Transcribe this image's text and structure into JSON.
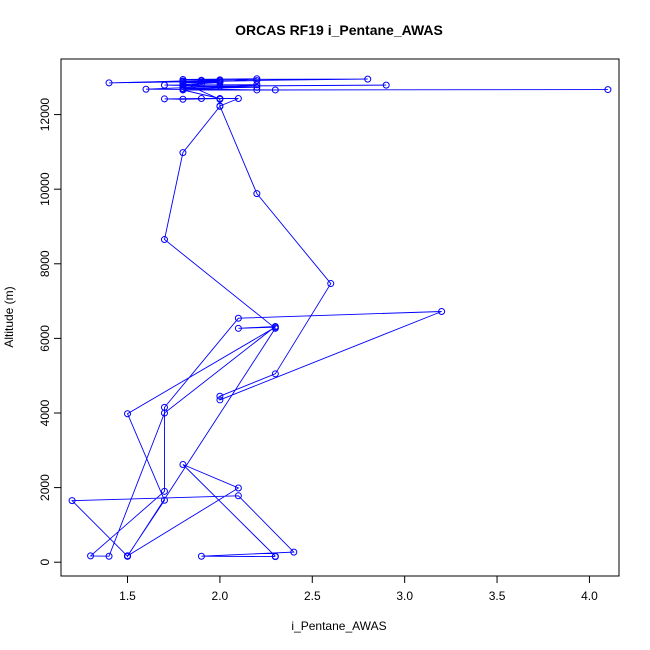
{
  "chart_data": {
    "type": "line",
    "title": "ORCAS RF19 i_Pentane_AWAS",
    "xlabel": "i_Pentane_AWAS",
    "ylabel": "Altitude (m)",
    "xlim": [
      1.14,
      4.16
    ],
    "ylim": [
      -370,
      13490
    ],
    "xticks": [
      1.5,
      2.0,
      2.5,
      3.0,
      3.5,
      4.0
    ],
    "xtick_labels": [
      "1.5",
      "2.0",
      "2.5",
      "3.0",
      "3.5",
      "4.0"
    ],
    "yticks": [
      0,
      2000,
      4000,
      6000,
      8000,
      10000,
      12000
    ],
    "ytick_labels": [
      "0",
      "2000",
      "4000",
      "6000",
      "8000",
      "10000",
      "12000"
    ],
    "grid": false,
    "series": [
      {
        "color": "#0000ff",
        "marker": "open-circle",
        "points": [
          [
            2.3,
            150
          ],
          [
            1.9,
            160
          ],
          [
            2.4,
            270
          ],
          [
            2.1,
            1780
          ],
          [
            1.2,
            1650
          ],
          [
            1.5,
            160
          ],
          [
            1.5,
            170
          ],
          [
            1.7,
            1660
          ],
          [
            1.5,
            3980
          ],
          [
            2.3,
            6300
          ],
          [
            2.1,
            6270
          ],
          [
            2.3,
            6320
          ],
          [
            1.7,
            4000
          ],
          [
            1.4,
            160
          ],
          [
            1.3,
            170
          ],
          [
            1.7,
            1900
          ],
          [
            1.7,
            4150
          ],
          [
            2.1,
            6540
          ],
          [
            3.2,
            6720
          ],
          [
            2.0,
            4350
          ],
          [
            2.0,
            4450
          ],
          [
            2.3,
            5050
          ],
          [
            2.6,
            7470
          ],
          [
            2.2,
            9880
          ],
          [
            2.0,
            12230
          ],
          [
            2.1,
            12430
          ],
          [
            1.9,
            12430
          ],
          [
            1.7,
            12420
          ],
          [
            1.8,
            12410
          ],
          [
            2.0,
            12430
          ],
          [
            1.8,
            12660
          ],
          [
            4.1,
            12670
          ],
          [
            2.2,
            12660
          ],
          [
            1.8,
            12700
          ],
          [
            2.2,
            12730
          ],
          [
            1.7,
            12790
          ],
          [
            2.2,
            12800
          ],
          [
            1.8,
            12680
          ],
          [
            2.3,
            12660
          ],
          [
            1.6,
            12680
          ],
          [
            2.0,
            12760
          ],
          [
            2.9,
            12790
          ],
          [
            1.8,
            12760
          ],
          [
            1.9,
            12830
          ],
          [
            2.0,
            12860
          ],
          [
            1.8,
            12880
          ],
          [
            1.9,
            12920
          ],
          [
            2.0,
            12930
          ],
          [
            1.4,
            12850
          ],
          [
            2.2,
            12910
          ],
          [
            1.9,
            12900
          ],
          [
            2.8,
            12950
          ],
          [
            1.8,
            12940
          ],
          [
            2.2,
            12960
          ],
          [
            1.8,
            12800
          ],
          [
            1.8,
            12900
          ],
          [
            2.0,
            12910
          ],
          [
            2.0,
            12880
          ],
          [
            1.8,
            12850
          ],
          [
            2.0,
            12410
          ],
          [
            2.0,
            12220
          ],
          [
            1.8,
            10980
          ],
          [
            1.7,
            8650
          ],
          [
            2.3,
            6270
          ],
          [
            1.5,
            160
          ],
          [
            1.5,
            170
          ],
          [
            2.1,
            1990
          ],
          [
            1.8,
            2620
          ],
          [
            2.3,
            160
          ]
        ]
      }
    ]
  }
}
